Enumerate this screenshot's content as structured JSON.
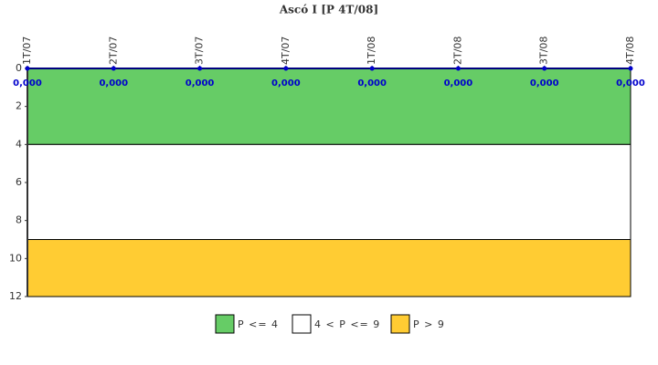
{
  "chart_data": {
    "type": "line",
    "title": "Ascó I [P 4T/08]",
    "categories": [
      "1T/07",
      "2T/07",
      "3T/07",
      "4T/07",
      "1T/08",
      "2T/08",
      "3T/08",
      "4T/08"
    ],
    "values": [
      0,
      0,
      0,
      0,
      0,
      0,
      0,
      0
    ],
    "value_labels": [
      "0,000",
      "0,000",
      "0,000",
      "0,000",
      "0,000",
      "0,000",
      "0,000",
      "0,000"
    ],
    "color": "#0000cc",
    "ylim": [
      0,
      12
    ],
    "y_inverted": true,
    "yticks": [
      0,
      2,
      4,
      6,
      8,
      10,
      12
    ],
    "bands": [
      {
        "name": "P <= 4",
        "color": "#66cc66",
        "from": 0,
        "to": 4
      },
      {
        "name": "4 < P <= 9",
        "color": "#ffffff",
        "from": 4,
        "to": 9
      },
      {
        "name": "P > 9",
        "color": "#ffcc33",
        "from": 9,
        "to": 12
      }
    ]
  }
}
